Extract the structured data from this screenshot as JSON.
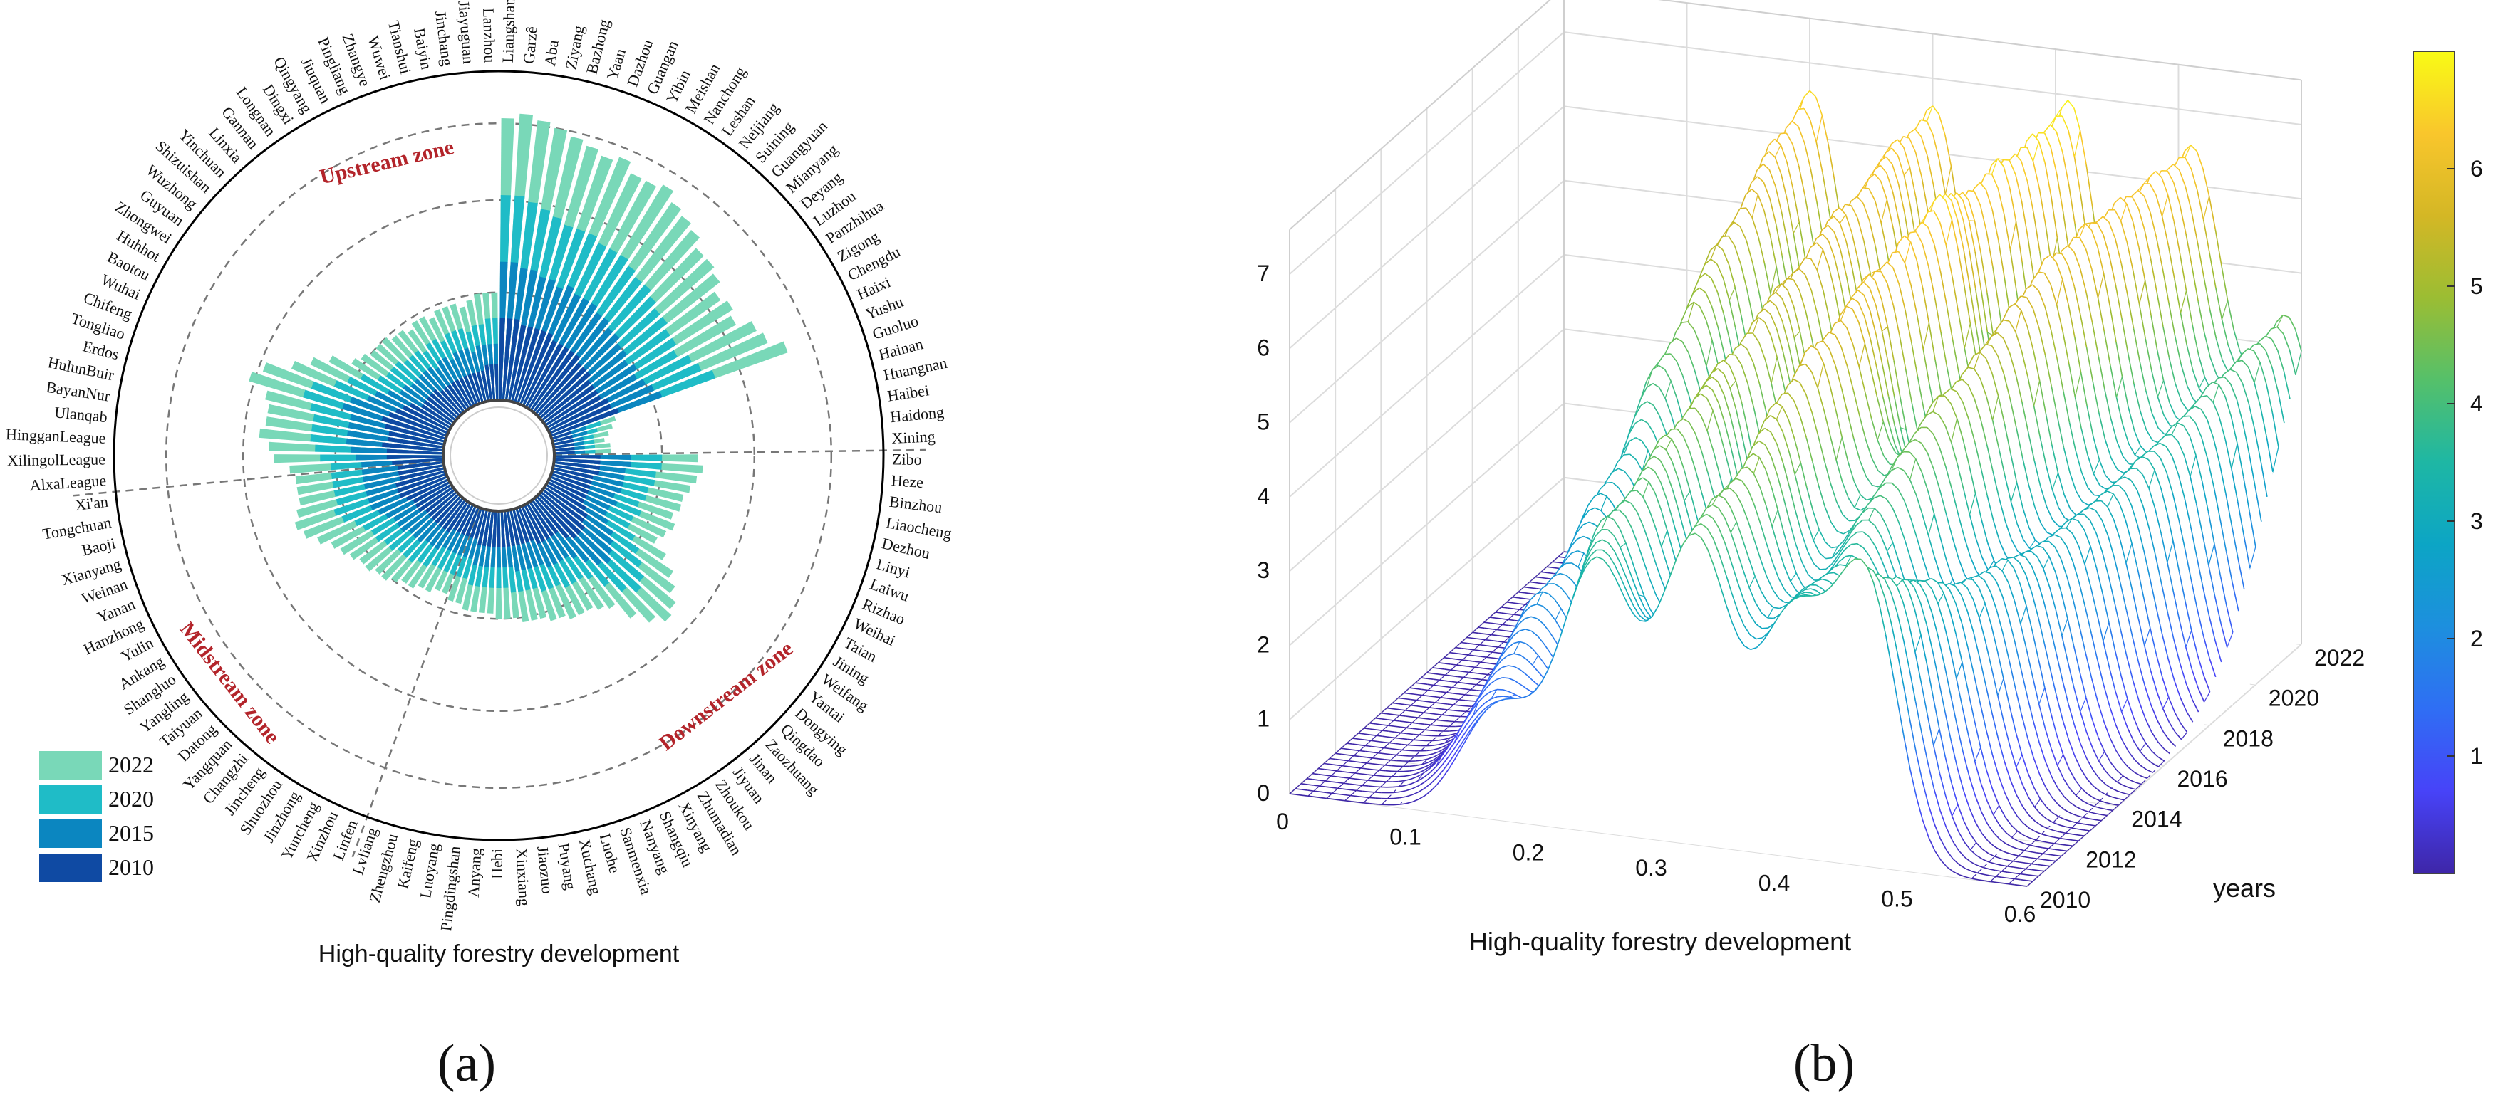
{
  "chart_data": [
    {
      "type": "radial-bar",
      "panel_label": "(a)",
      "title": "High-quality forestry development",
      "inner_label": "",
      "axis_range": [
        0,
        0.6
      ],
      "legend": {
        "placement": "bottom-left",
        "entries": [
          {
            "name": "2022",
            "color": "#79d8b8"
          },
          {
            "name": "2020",
            "color": "#1fbcc7"
          },
          {
            "name": "2015",
            "color": "#0b86c0"
          },
          {
            "name": "2010",
            "color": "#0f4aa3"
          }
        ]
      },
      "zones": [
        {
          "name": "Upstream zone",
          "color": "#b3242a"
        },
        {
          "name": "Midstream zone",
          "color": "#b3242a"
        },
        {
          "name": "Downstream zone",
          "color": "#b3242a"
        }
      ],
      "categories": [
        "Liangshan",
        "Garzê",
        "Aba",
        "Ziyang",
        "Bazhong",
        "Yaan",
        "Dazhou",
        "Guangan",
        "Yibin",
        "Meishan",
        "Nanchong",
        "Leshan",
        "Neijiang",
        "Suining",
        "Guangyuan",
        "Mianyang",
        "Deyang",
        "Luzhou",
        "Panzhihua",
        "Zigong",
        "Chengdu",
        "Haixi",
        "Yushu",
        "Guoluo",
        "Hainan",
        "Huangnan",
        "Haibei",
        "Haidong",
        "Xining",
        "Zibo",
        "Heze",
        "Binzhou",
        "Liaocheng",
        "Dezhou",
        "Linyi",
        "Laiwu",
        "Rizhao",
        "Weihai",
        "Taian",
        "Jining",
        "Weifang",
        "Yantai",
        "Dongying",
        "Qingdao",
        "Zaozhuang",
        "Jinan",
        "Jiyuan",
        "Zhoukou",
        "Zhumadian",
        "Xinyang",
        "Shangqiu",
        "Nanyang",
        "Sanmenxia",
        "Luohe",
        "Xuchang",
        "Puyang",
        "Jiaozuo",
        "Xinxiang",
        "Hebi",
        "Anyang",
        "Pingdingshan",
        "Luoyang",
        "Kaifeng",
        "Zhengzhou",
        "Lvliang",
        "Linfen",
        "Xinzhou",
        "Yuncheng",
        "Jinzhong",
        "Shuozhou",
        "Jincheng",
        "Changzhi",
        "Yangquan",
        "Datong",
        "Taiyuan",
        "Yangling",
        "Shangluo",
        "Ankang",
        "Yulin",
        "Hanzhong",
        "Yanan",
        "Weinan",
        "Xianyang",
        "Baoji",
        "Tongchuan",
        "Xi'an",
        "AlxaLeague",
        "XilingolLeague",
        "HingganLeague",
        "Ulanqab",
        "BayanNur",
        "HulunBuir",
        "Erdos",
        "Tongliao",
        "Chifeng",
        "Wuhai",
        "Baotou",
        "Huhhot",
        "Zhongwei",
        "Guyuan",
        "Wuzhong",
        "Shizuishan",
        "Yinchuan",
        "Linxia",
        "Gannan",
        "Longnan",
        "Dingxi",
        "Qingyang",
        "Jiuquan",
        "Pingliang",
        "Zhangye",
        "Wuwei",
        "Tianshui",
        "Baiyin",
        "Jinchang",
        "Jiayuguan",
        "Lanzhou"
      ],
      "series": [
        {
          "name": "2022",
          "values": [
            0.55,
            0.56,
            0.55,
            0.54,
            0.53,
            0.52,
            0.51,
            0.52,
            0.5,
            0.5,
            0.51,
            0.49,
            0.48,
            0.47,
            0.45,
            0.45,
            0.44,
            0.42,
            0.43,
            0.42,
            0.45,
            0.46,
            0.49,
            0.13,
            0.12,
            0.11,
            0.1,
            0.11,
            0.11,
            0.28,
            0.29,
            0.28,
            0.27,
            0.26,
            0.26,
            0.25,
            0.26,
            0.25,
            0.24,
            0.27,
            0.3,
            0.32,
            0.34,
            0.35,
            0.33,
            0.3,
            0.26,
            0.25,
            0.24,
            0.24,
            0.24,
            0.23,
            0.23,
            0.22,
            0.22,
            0.22,
            0.21,
            0.21,
            0.21,
            0.2,
            0.2,
            0.2,
            0.2,
            0.19,
            0.19,
            0.18,
            0.18,
            0.19,
            0.19,
            0.2,
            0.2,
            0.21,
            0.22,
            0.22,
            0.23,
            0.23,
            0.24,
            0.25,
            0.26,
            0.28,
            0.3,
            0.31,
            0.3,
            0.29,
            0.29,
            0.29,
            0.3,
            0.33,
            0.34,
            0.36,
            0.35,
            0.35,
            0.36,
            0.4,
            0.38,
            0.33,
            0.3,
            0.27,
            0.23,
            0.22,
            0.21,
            0.21,
            0.21,
            0.2,
            0.2,
            0.19,
            0.2,
            0.2,
            0.19,
            0.2,
            0.2,
            0.2,
            0.19,
            0.2,
            0.21,
            0.21,
            0.21
          ]
        },
        {
          "name": "2020",
          "values": [
            0.4,
            0.4,
            0.39,
            0.38,
            0.37,
            0.36,
            0.36,
            0.36,
            0.35,
            0.35,
            0.35,
            0.34,
            0.33,
            0.33,
            0.32,
            0.31,
            0.31,
            0.3,
            0.3,
            0.29,
            0.31,
            0.32,
            0.34,
            0.1,
            0.09,
            0.08,
            0.08,
            0.08,
            0.08,
            0.21,
            0.21,
            0.2,
            0.2,
            0.19,
            0.19,
            0.18,
            0.19,
            0.18,
            0.18,
            0.2,
            0.22,
            0.24,
            0.26,
            0.27,
            0.25,
            0.22,
            0.19,
            0.18,
            0.18,
            0.18,
            0.17,
            0.17,
            0.17,
            0.16,
            0.16,
            0.16,
            0.16,
            0.15,
            0.15,
            0.15,
            0.15,
            0.15,
            0.15,
            0.14,
            0.14,
            0.14,
            0.14,
            0.14,
            0.14,
            0.15,
            0.15,
            0.16,
            0.16,
            0.16,
            0.17,
            0.17,
            0.18,
            0.18,
            0.19,
            0.2,
            0.22,
            0.23,
            0.22,
            0.22,
            0.22,
            0.22,
            0.22,
            0.24,
            0.25,
            0.26,
            0.26,
            0.26,
            0.27,
            0.29,
            0.28,
            0.24,
            0.22,
            0.2,
            0.17,
            0.16,
            0.16,
            0.16,
            0.15,
            0.15,
            0.15,
            0.14,
            0.15,
            0.15,
            0.14,
            0.15,
            0.15,
            0.15,
            0.14,
            0.15,
            0.15,
            0.16,
            0.16
          ]
        },
        {
          "name": "2015",
          "values": [
            0.27,
            0.27,
            0.26,
            0.26,
            0.25,
            0.25,
            0.24,
            0.25,
            0.24,
            0.24,
            0.24,
            0.23,
            0.23,
            0.22,
            0.22,
            0.21,
            0.21,
            0.2,
            0.21,
            0.2,
            0.21,
            0.22,
            0.23,
            0.07,
            0.07,
            0.06,
            0.06,
            0.06,
            0.06,
            0.15,
            0.15,
            0.14,
            0.14,
            0.14,
            0.14,
            0.13,
            0.14,
            0.13,
            0.13,
            0.14,
            0.16,
            0.17,
            0.18,
            0.19,
            0.18,
            0.16,
            0.14,
            0.13,
            0.13,
            0.13,
            0.13,
            0.12,
            0.12,
            0.12,
            0.12,
            0.12,
            0.11,
            0.11,
            0.11,
            0.11,
            0.11,
            0.11,
            0.11,
            0.1,
            0.1,
            0.1,
            0.1,
            0.1,
            0.1,
            0.11,
            0.11,
            0.11,
            0.12,
            0.12,
            0.12,
            0.13,
            0.13,
            0.13,
            0.14,
            0.15,
            0.16,
            0.16,
            0.16,
            0.16,
            0.16,
            0.16,
            0.16,
            0.17,
            0.18,
            0.19,
            0.19,
            0.19,
            0.19,
            0.21,
            0.2,
            0.17,
            0.16,
            0.14,
            0.12,
            0.12,
            0.11,
            0.11,
            0.11,
            0.11,
            0.11,
            0.1,
            0.11,
            0.11,
            0.1,
            0.11,
            0.11,
            0.11,
            0.1,
            0.11,
            0.11,
            0.11,
            0.11
          ]
        },
        {
          "name": "2010",
          "values": [
            0.16,
            0.16,
            0.16,
            0.15,
            0.15,
            0.15,
            0.15,
            0.15,
            0.14,
            0.14,
            0.14,
            0.14,
            0.14,
            0.13,
            0.13,
            0.13,
            0.12,
            0.12,
            0.12,
            0.12,
            0.13,
            0.13,
            0.14,
            0.04,
            0.04,
            0.04,
            0.04,
            0.04,
            0.04,
            0.09,
            0.09,
            0.09,
            0.09,
            0.08,
            0.08,
            0.08,
            0.08,
            0.08,
            0.08,
            0.09,
            0.1,
            0.1,
            0.11,
            0.11,
            0.11,
            0.1,
            0.08,
            0.08,
            0.08,
            0.08,
            0.08,
            0.07,
            0.07,
            0.07,
            0.07,
            0.07,
            0.07,
            0.07,
            0.07,
            0.07,
            0.07,
            0.07,
            0.07,
            0.06,
            0.06,
            0.06,
            0.06,
            0.06,
            0.06,
            0.07,
            0.07,
            0.07,
            0.07,
            0.07,
            0.07,
            0.07,
            0.08,
            0.08,
            0.08,
            0.09,
            0.1,
            0.1,
            0.1,
            0.09,
            0.09,
            0.09,
            0.1,
            0.11,
            0.11,
            0.12,
            0.11,
            0.11,
            0.12,
            0.13,
            0.12,
            0.11,
            0.1,
            0.09,
            0.07,
            0.07,
            0.07,
            0.07,
            0.07,
            0.06,
            0.06,
            0.06,
            0.06,
            0.06,
            0.06,
            0.06,
            0.06,
            0.06,
            0.06,
            0.06,
            0.07,
            0.07,
            0.07
          ]
        }
      ]
    },
    {
      "type": "surface",
      "panel_label": "(b)",
      "xlabel": "High-quality forestry development",
      "ylabel": "years",
      "zlabel": "",
      "x_ticks": [
        "0",
        "0.1",
        "0.2",
        "0.3",
        "0.4",
        "0.5",
        "0.6"
      ],
      "x_range": [
        0,
        0.6
      ],
      "y_ticks": [
        "2010",
        "2012",
        "2014",
        "2016",
        "2018",
        "2020",
        "2022"
      ],
      "y_range": [
        2010,
        2022
      ],
      "z_ticks": [
        "0",
        "1",
        "2",
        "3",
        "4",
        "5",
        "6",
        "7"
      ],
      "z_range": [
        0,
        7
      ],
      "colorbar": {
        "ticks": [
          "1",
          "2",
          "3",
          "4",
          "5",
          "6"
        ],
        "range": [
          0,
          7
        ],
        "colormap": "parula"
      },
      "years": [
        2010,
        2011,
        2012,
        2013,
        2014,
        2015,
        2016,
        2017,
        2018,
        2019,
        2020,
        2021,
        2022
      ],
      "peaks_by_year": [
        [
          [
            0.17,
            1.5,
            0.03
          ],
          [
            0.25,
            3.6,
            0.03
          ],
          [
            0.33,
            4.0,
            0.028
          ],
          [
            0.41,
            3.2,
            0.03
          ],
          [
            0.47,
            3.6,
            0.025
          ]
        ],
        [
          [
            0.15,
            1.4,
            0.03
          ],
          [
            0.24,
            3.9,
            0.03
          ],
          [
            0.33,
            4.3,
            0.03
          ],
          [
            0.41,
            3.2,
            0.03
          ],
          [
            0.48,
            3.4,
            0.025
          ]
        ],
        [
          [
            0.15,
            1.8,
            0.03
          ],
          [
            0.25,
            4.2,
            0.03
          ],
          [
            0.34,
            4.6,
            0.028
          ],
          [
            0.42,
            3.4,
            0.03
          ],
          [
            0.49,
            3.1,
            0.025
          ]
        ],
        [
          [
            0.15,
            2.2,
            0.03
          ],
          [
            0.25,
            4.5,
            0.03
          ],
          [
            0.34,
            5.0,
            0.028
          ],
          [
            0.42,
            3.8,
            0.03
          ],
          [
            0.5,
            3.0,
            0.025
          ]
        ],
        [
          [
            0.16,
            2.5,
            0.03
          ],
          [
            0.26,
            4.8,
            0.03
          ],
          [
            0.35,
            5.5,
            0.028
          ],
          [
            0.43,
            4.3,
            0.03
          ],
          [
            0.51,
            3.0,
            0.025
          ]
        ],
        [
          [
            0.16,
            3.0,
            0.03
          ],
          [
            0.26,
            5.0,
            0.03
          ],
          [
            0.36,
            5.8,
            0.028
          ],
          [
            0.44,
            4.8,
            0.03
          ],
          [
            0.52,
            2.9,
            0.025
          ]
        ],
        [
          [
            0.17,
            3.5,
            0.03
          ],
          [
            0.27,
            5.3,
            0.03
          ],
          [
            0.36,
            6.0,
            0.028
          ],
          [
            0.45,
            5.2,
            0.03
          ],
          [
            0.53,
            3.0,
            0.025
          ]
        ],
        [
          [
            0.17,
            4.2,
            0.03
          ],
          [
            0.27,
            5.5,
            0.03
          ],
          [
            0.37,
            6.3,
            0.028
          ],
          [
            0.46,
            5.6,
            0.03
          ],
          [
            0.54,
            3.1,
            0.025
          ]
        ],
        [
          [
            0.18,
            4.8,
            0.03
          ],
          [
            0.28,
            5.8,
            0.03
          ],
          [
            0.38,
            6.6,
            0.028
          ],
          [
            0.47,
            6.0,
            0.03
          ],
          [
            0.55,
            3.3,
            0.025
          ]
        ],
        [
          [
            0.18,
            5.3,
            0.03
          ],
          [
            0.28,
            6.0,
            0.03
          ],
          [
            0.38,
            6.4,
            0.028
          ],
          [
            0.48,
            6.2,
            0.03
          ],
          [
            0.56,
            3.5,
            0.025
          ]
        ],
        [
          [
            0.19,
            5.8,
            0.03
          ],
          [
            0.29,
            6.2,
            0.03
          ],
          [
            0.39,
            6.6,
            0.028
          ],
          [
            0.49,
            6.3,
            0.03
          ],
          [
            0.57,
            3.8,
            0.025
          ]
        ],
        [
          [
            0.19,
            6.2,
            0.03
          ],
          [
            0.29,
            6.4,
            0.03
          ],
          [
            0.4,
            6.7,
            0.028
          ],
          [
            0.5,
            6.4,
            0.03
          ],
          [
            0.58,
            4.0,
            0.025
          ]
        ],
        [
          [
            0.2,
            6.6,
            0.03
          ],
          [
            0.3,
            6.6,
            0.03
          ],
          [
            0.41,
            6.9,
            0.028
          ],
          [
            0.51,
            6.5,
            0.03
          ],
          [
            0.59,
            4.2,
            0.025
          ]
        ]
      ]
    }
  ]
}
